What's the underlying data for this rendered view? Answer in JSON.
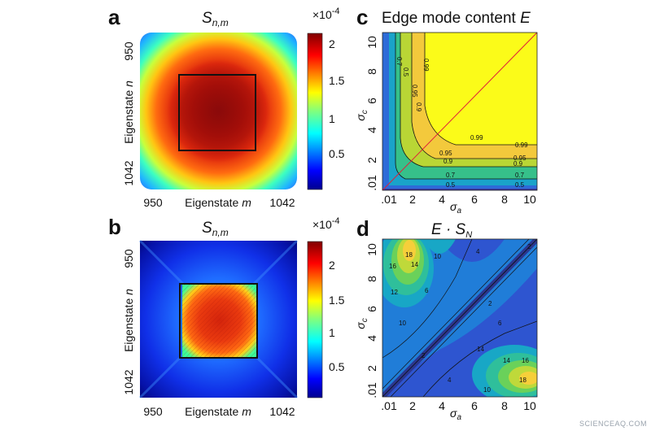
{
  "watermark": "SCIENCEAQ.COM",
  "panels": [
    {
      "letter": "a",
      "title_main": "S",
      "title_sub": "n,m",
      "xlabel_text": "Eigenstate ",
      "xlabel_var": "m",
      "ylabel_text": "Eigenstate ",
      "ylabel_var": "n",
      "x_ticks": [
        "950",
        "1042"
      ],
      "y_ticks": [
        "950",
        "1042"
      ],
      "colorbar": {
        "exponent_prefix": "×10",
        "exponent": "-4",
        "ticks": [
          "0.5",
          "1",
          "1.5",
          "2"
        ]
      }
    },
    {
      "letter": "b",
      "title_main": "S",
      "title_sub": "n,m",
      "xlabel_text": "Eigenstate ",
      "xlabel_var": "m",
      "ylabel_text": "Eigenstate ",
      "ylabel_var": "n",
      "x_ticks": [
        "950",
        "1042"
      ],
      "y_ticks": [
        "950",
        "1042"
      ],
      "colorbar": {
        "exponent_prefix": "×10",
        "exponent": "-4",
        "ticks": [
          "0.5",
          "1",
          "1.5",
          "2"
        ]
      }
    },
    {
      "letter": "c",
      "title_text": "Edge mode content ",
      "title_var": "E",
      "xlabel_var": "σ",
      "xlabel_sub": "a",
      "ylabel_var": "σ",
      "ylabel_sub": "c",
      "x_ticks": [
        ".01",
        "2",
        "4",
        "6",
        "8",
        "10"
      ],
      "y_ticks": [
        ".01",
        "2",
        "4",
        "6",
        "8",
        "10"
      ]
    },
    {
      "letter": "d",
      "title_text": "E · S",
      "title_sub": "N",
      "xlabel_var": "σ",
      "xlabel_sub": "a",
      "ylabel_var": "σ",
      "ylabel_sub": "c",
      "x_ticks": [
        ".01",
        "2",
        "4",
        "6",
        "8",
        "10"
      ],
      "y_ticks": [
        ".01",
        "2",
        "4",
        "6",
        "8",
        "10"
      ]
    }
  ],
  "chart_data": [
    {
      "type": "heatmap",
      "panel": "a",
      "title": "S_{n,m}",
      "xlabel": "Eigenstate m",
      "ylabel": "Eigenstate n",
      "xlim": [
        950,
        1042
      ],
      "ylim": [
        950,
        1042
      ],
      "zlim": [
        0,
        2.2
      ],
      "z_scale": "1e-4",
      "colormap": "jet",
      "colorbar_ticks": [
        0.5,
        1,
        1.5,
        2
      ],
      "highlight_box": {
        "m": [
          969,
          1022
        ],
        "n": [
          969,
          1022
        ]
      },
      "description_values": {
        "center": 2.1,
        "mid_ring": 1.9,
        "edge": 0.6
      }
    },
    {
      "type": "heatmap",
      "panel": "b",
      "title": "S_{n,m}",
      "xlabel": "Eigenstate m",
      "ylabel": "Eigenstate n",
      "xlim": [
        950,
        1042
      ],
      "ylim": [
        950,
        1042
      ],
      "zlim": [
        0,
        2.4
      ],
      "z_scale": "1e-4",
      "colormap": "jet",
      "colorbar_ticks": [
        0.5,
        1,
        1.5,
        2
      ],
      "highlight_box": {
        "m": [
          968,
          1022
        ],
        "n": [
          968,
          1022
        ]
      },
      "description_values": {
        "inside_box": 2.2,
        "outside_box": 0.5,
        "corners": 0.05
      }
    },
    {
      "type": "contour",
      "panel": "c",
      "title": "Edge mode content E",
      "xlabel": "σ_a",
      "ylabel": "σ_c",
      "xlim": [
        0.01,
        10
      ],
      "ylim": [
        0.01,
        10
      ],
      "contour_levels": [
        0.5,
        0.7,
        0.9,
        0.95,
        0.99
      ],
      "contour_labels": [
        "0.5",
        "0.7",
        "0.9",
        "0.95",
        "0.99"
      ],
      "diagonal_line": true,
      "fill_colors": [
        "#3b3a9e",
        "#2e6bd8",
        "#1aa3c9",
        "#36c08a",
        "#b9d635",
        "#f3c93c",
        "#fbfb19"
      ]
    },
    {
      "type": "contour",
      "panel": "d",
      "title": "E · S_N",
      "xlabel": "σ_a",
      "ylabel": "σ_c",
      "xlim": [
        0.01,
        10
      ],
      "ylim": [
        0.01,
        10
      ],
      "contour_levels": [
        2,
        4,
        6,
        10,
        12,
        14,
        16,
        18
      ],
      "contour_labels": [
        "2",
        "4",
        "6",
        "10",
        "12",
        "14",
        "16",
        "18"
      ],
      "peaks": [
        {
          "sigma_a": 1.2,
          "sigma_c": 9.3,
          "value": 18
        },
        {
          "sigma_a": 9.2,
          "sigma_c": 1.2,
          "value": 18
        }
      ],
      "fill_colors": [
        "#3b3a9e",
        "#2e55d0",
        "#1f82d8",
        "#18a7c6",
        "#2fbf9b",
        "#6ad15a",
        "#bfd93a",
        "#f6cf3a",
        "#fbf050"
      ]
    }
  ]
}
